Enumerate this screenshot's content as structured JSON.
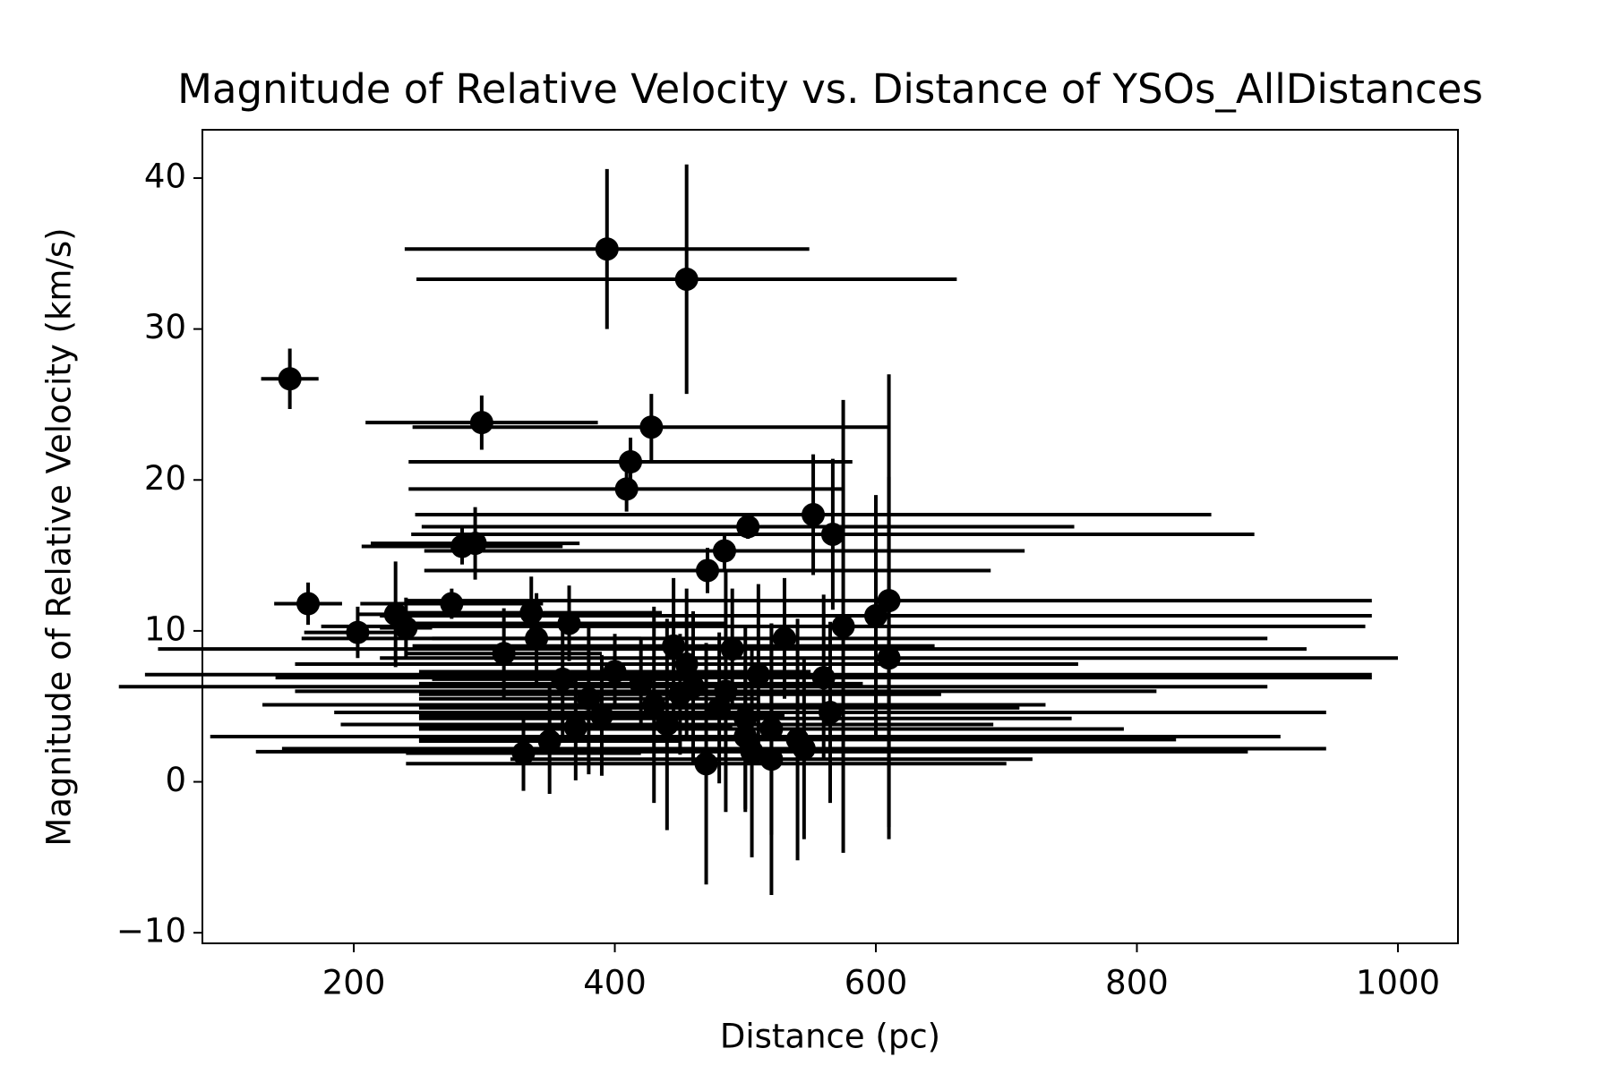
{
  "chart_data": {
    "type": "errorbar",
    "title": "Magnitude of Relative Velocity vs. Distance of YSOs_AllDistances",
    "x_label": "Distance (pc)",
    "y_label": "Magnitude of Relative Velocity (km/s)",
    "xlim": [
      84,
      1046
    ],
    "ylim": [
      -10.7,
      43.2
    ],
    "xticks": [
      200,
      400,
      600,
      800,
      1000
    ],
    "yticks": [
      {
        "value": -10,
        "label": "−10"
      },
      0,
      10,
      20,
      30,
      40
    ],
    "color": "#000000",
    "x": [
      394,
      455,
      151,
      298,
      428,
      412,
      409,
      552,
      502,
      567,
      484,
      283,
      293,
      471,
      165,
      203,
      275,
      336,
      232,
      240,
      400,
      420,
      450,
      480,
      500,
      520,
      540,
      560,
      510,
      460,
      430,
      390,
      370,
      350,
      330,
      470,
      520,
      545,
      500,
      490,
      530,
      575,
      600,
      610,
      610,
      315,
      340,
      365,
      380,
      445,
      455,
      565,
      505,
      485,
      440,
      360
    ],
    "values": [
      35.3,
      33.3,
      26.7,
      23.8,
      23.5,
      21.2,
      19.4,
      17.7,
      16.9,
      16.4,
      15.3,
      15.6,
      15.8,
      14.0,
      11.8,
      9.9,
      11.8,
      11.2,
      11.1,
      10.2,
      7.3,
      6.5,
      5.8,
      4.9,
      4.2,
      3.5,
      2.8,
      6.9,
      7.1,
      6.3,
      5.1,
      4.4,
      3.6,
      2.7,
      1.9,
      1.2,
      1.5,
      2.2,
      3.0,
      8.8,
      9.5,
      10.3,
      11.0,
      12.0,
      8.2,
      8.5,
      9.5,
      10.5,
      5.5,
      9.0,
      7.8,
      4.6,
      2.0,
      6.0,
      3.8,
      6.8
    ],
    "xerr": [
      155,
      207,
      22,
      89,
      183,
      170,
      167,
      305,
      250,
      323,
      230,
      77,
      80,
      217,
      26,
      41,
      70,
      100,
      30,
      20,
      150,
      170,
      200,
      230,
      250,
      270,
      290,
      420,
      470,
      440,
      300,
      140,
      120,
      100,
      90,
      230,
      200,
      400,
      410,
      440,
      370,
      400,
      380,
      370,
      390,
      75,
      80,
      120,
      130,
      200,
      300,
      380,
      380,
      330,
      250,
      100
    ],
    "yerr": [
      5.3,
      7.6,
      2,
      1.8,
      2.2,
      1.6,
      1.5,
      4,
      0.8,
      5,
      1.2,
      1.2,
      2.4,
      1.5,
      1.4,
      1.7,
      1,
      2.4,
      3.5,
      2,
      2.5,
      3,
      4,
      5,
      6,
      7,
      8,
      5.5,
      6,
      5,
      6.5,
      4,
      3.5,
      3.5,
      2.5,
      8,
      9,
      6,
      5,
      4,
      4,
      15,
      8,
      15,
      12,
      3,
      3,
      2.5,
      5,
      4.5,
      5,
      6,
      7,
      8,
      7,
      4
    ]
  }
}
